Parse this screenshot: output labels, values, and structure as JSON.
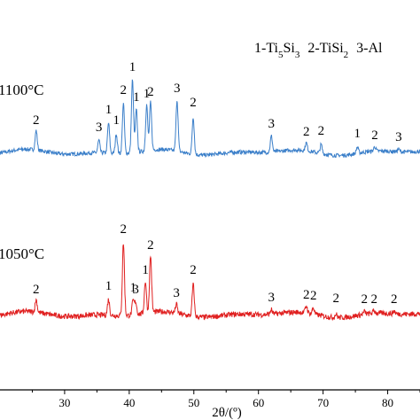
{
  "chart_data": {
    "type": "line",
    "xlabel": "2θ/(º)",
    "ylabel": "",
    "xlim": [
      20,
      85
    ],
    "x_ticks": [
      "30",
      "40",
      "50",
      "60",
      "70",
      "80"
    ],
    "x_tick_values": [
      30,
      40,
      50,
      60,
      70,
      80
    ],
    "grid": false,
    "legend": {
      "placement": "top-right",
      "items": [
        {
          "index": "1",
          "phase": "Ti",
          "sub1": "5",
          "mid": "Si",
          "sub2": "3"
        },
        {
          "index": "2",
          "phase": "TiSi",
          "sub1": "2",
          "mid": "",
          "sub2": ""
        },
        {
          "index": "3",
          "phase": "Al",
          "sub1": "",
          "mid": "",
          "sub2": ""
        }
      ]
    },
    "series": [
      {
        "name": "1100°C",
        "color": "#3b7fc9",
        "baseline": 0,
        "noise": 2.2,
        "peaks": [
          {
            "x": 25.6,
            "h": 22,
            "label": "2"
          },
          {
            "x": 35.3,
            "h": 14,
            "label": "3"
          },
          {
            "x": 36.8,
            "h": 34,
            "label": "1"
          },
          {
            "x": 38.0,
            "h": 22,
            "label": "1"
          },
          {
            "x": 39.1,
            "h": 56,
            "label": "2"
          },
          {
            "x": 40.5,
            "h": 82,
            "label": "1"
          },
          {
            "x": 41.1,
            "h": 48,
            "label": "1"
          },
          {
            "x": 42.7,
            "h": 52,
            "label": "1"
          },
          {
            "x": 43.3,
            "h": 54,
            "label": "2"
          },
          {
            "x": 47.4,
            "h": 58,
            "label": "3"
          },
          {
            "x": 49.9,
            "h": 42,
            "label": "2"
          },
          {
            "x": 62.0,
            "h": 18,
            "label": "3"
          },
          {
            "x": 67.4,
            "h": 9,
            "label": "2"
          },
          {
            "x": 69.7,
            "h": 10,
            "label": "2"
          },
          {
            "x": 75.3,
            "h": 7,
            "label": "1"
          },
          {
            "x": 78.0,
            "h": 5,
            "label": "2"
          },
          {
            "x": 81.7,
            "h": 3,
            "label": "3"
          }
        ]
      },
      {
        "name": "1050°C",
        "color": "#e02020",
        "baseline": 0,
        "noise": 3,
        "peaks": [
          {
            "x": 25.6,
            "h": 14,
            "label": "2"
          },
          {
            "x": 36.8,
            "h": 18,
            "label": "1"
          },
          {
            "x": 39.1,
            "h": 82,
            "label": "2"
          },
          {
            "x": 40.6,
            "h": 16,
            "label": "1"
          },
          {
            "x": 41.0,
            "h": 14,
            "label": "3"
          },
          {
            "x": 42.5,
            "h": 36,
            "label": "1"
          },
          {
            "x": 43.3,
            "h": 64,
            "label": "2"
          },
          {
            "x": 47.3,
            "h": 10,
            "label": "3"
          },
          {
            "x": 49.9,
            "h": 36,
            "label": "2"
          },
          {
            "x": 62.0,
            "h": 5,
            "label": "3"
          },
          {
            "x": 67.4,
            "h": 8,
            "label": "2"
          },
          {
            "x": 68.5,
            "h": 7,
            "label": "2"
          },
          {
            "x": 72.0,
            "h": 4,
            "label": "2"
          },
          {
            "x": 76.4,
            "h": 3,
            "label": "2"
          },
          {
            "x": 77.9,
            "h": 3,
            "label": "2"
          },
          {
            "x": 81.0,
            "h": 3,
            "label": "2"
          }
        ]
      }
    ]
  }
}
